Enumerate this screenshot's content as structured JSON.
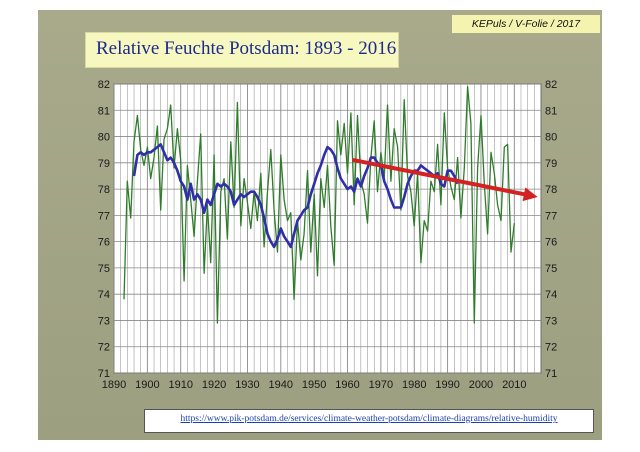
{
  "credit": "KEPuls / V-Folie / 2017",
  "url": "https://www.pik-potsdam.de/services/climate-weather-potsdam/climate-diagrams/relative-humidity",
  "colors": {
    "raw": "#2e7d2a",
    "smooth": "#2f2fa8",
    "trend": "#d42222",
    "plot_bg": "#ffffff",
    "grid": "#888888"
  },
  "chart_data": {
    "type": "line",
    "title": "Relative Feuchte Potsdam:  1893 - 2016",
    "xlabel": "",
    "ylabel": "",
    "xlim": [
      1890,
      2018
    ],
    "ylim": [
      71,
      82
    ],
    "xticks": [
      "1890",
      "1900",
      "1910",
      "1920",
      "1930",
      "1940",
      "1950",
      "1960",
      "1970",
      "1980",
      "1990",
      "2000",
      "2010"
    ],
    "yticks_left": [
      "82",
      "81",
      "80",
      "79",
      "78",
      "77",
      "76",
      "75",
      "74",
      "73",
      "72",
      "71"
    ],
    "yticks_right": [
      "82",
      "81",
      "80",
      "79",
      "78",
      "77",
      "76",
      "75",
      "74",
      "73",
      "72",
      "71"
    ],
    "grid": true,
    "series": [
      {
        "style": "annual",
        "x_start": 1893,
        "values": [
          73.8,
          78.3,
          76.9,
          79.8,
          80.8,
          79.5,
          78.9,
          79.6,
          78.4,
          79.2,
          80.4,
          77.2,
          79.9,
          80.3,
          81.2,
          78.8,
          80.3,
          79.1,
          74.5,
          78.9,
          77.6,
          76.2,
          78.3,
          80.1,
          74.8,
          77.4,
          75.2,
          79.3,
          72.9,
          77.9,
          78.4,
          76.1,
          79.8,
          77.3,
          81.3,
          76.6,
          78.4,
          77.5,
          76.5,
          77.9,
          76.8,
          78.6,
          75.8,
          77.9,
          79.5,
          77.2,
          75.6,
          79.3,
          77.6,
          76.8,
          77.1,
          73.8,
          76.8,
          75.3,
          76.3,
          78.7,
          75.6,
          77.8,
          74.7,
          78.4,
          77.3,
          78.9,
          76.6,
          75.1,
          80.6,
          79.3,
          80.5,
          78.6,
          80.9,
          77.4,
          80.8,
          78.3,
          77.8,
          76.7,
          79.2,
          80.6,
          77.9,
          79.4,
          78.4,
          81.2,
          78.3,
          80.3,
          79.6,
          77.2,
          81.4,
          78.5,
          77.9,
          76.6,
          78.6,
          75.2,
          76.8,
          76.4,
          78.3,
          77.9,
          79.7,
          77.4,
          80.9,
          78.8,
          78.1,
          77.6,
          79.2,
          76.9,
          78.8,
          81.9,
          80.5,
          72.9,
          78.8,
          80.8,
          78.2,
          76.3,
          79.4,
          78.6,
          77.4,
          76.8,
          79.6,
          79.7,
          75.6,
          76.7
        ]
      },
      {
        "style": "smoothed",
        "x_start": 1896,
        "values": [
          78.5,
          79.3,
          79.4,
          79.3,
          79.4,
          79.4,
          79.5,
          79.6,
          79.7,
          79.4,
          79.1,
          79.2,
          79.0,
          78.7,
          78.3,
          78.1,
          77.6,
          78.2,
          77.6,
          77.8,
          77.6,
          77.1,
          77.6,
          77.4,
          77.8,
          78.2,
          78.1,
          78.2,
          78.1,
          77.9,
          77.4,
          77.6,
          77.8,
          77.7,
          77.8,
          77.9,
          77.9,
          77.7,
          77.4,
          76.9,
          76.3,
          76.0,
          75.8,
          76.1,
          76.5,
          76.2,
          76.0,
          75.8,
          76.3,
          76.8,
          77.0,
          77.2,
          77.3,
          77.8,
          78.2,
          78.6,
          78.9,
          79.3,
          79.6,
          79.5,
          79.3,
          78.8,
          78.4,
          78.2,
          78.0,
          78.1,
          77.9,
          78.4,
          78.1,
          78.5,
          78.8,
          79.2,
          79.2,
          79.0,
          78.9,
          78.3,
          78.0,
          77.6,
          77.3,
          77.3,
          77.3,
          77.7,
          78.2,
          78.5,
          78.7,
          78.7,
          78.9,
          78.8,
          78.7,
          78.6,
          78.5,
          78.6,
          78.2,
          78.1,
          78.7,
          78.7,
          78.5,
          78.2
        ]
      }
    ],
    "annotations": [
      {
        "type": "arrow",
        "from": [
          1962,
          79.1
        ],
        "to": [
          2017,
          77.7
        ]
      }
    ]
  }
}
